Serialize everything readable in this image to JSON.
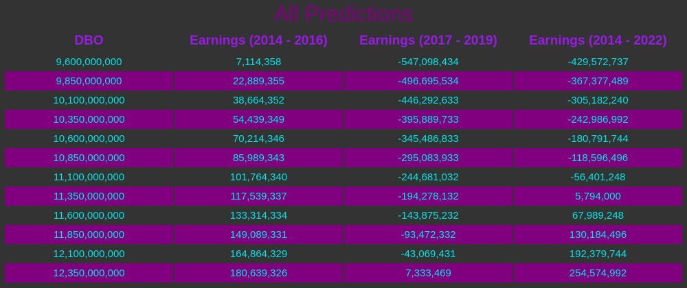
{
  "title": "All Predictions",
  "colors": {
    "background": "#333333",
    "title": "#800080",
    "header_text": "#9a1ae6",
    "cell_text": "#00e5e5",
    "alt_row": "#800080"
  },
  "table": {
    "columns": [
      "DBO",
      "Earnings (2014 - 2016)",
      "Earnings (2017 - 2019)",
      "Earnings (2014 - 2022)"
    ],
    "rows": [
      [
        "9,600,000,000",
        "7,114,358",
        "-547,098,434",
        "-429,572,737"
      ],
      [
        "9,850,000,000",
        "22,889,355",
        "-496,695,534",
        "-367,377,489"
      ],
      [
        "10,100,000,000",
        "38,664,352",
        "-446,292,633",
        "-305,182,240"
      ],
      [
        "10,350,000,000",
        "54,439,349",
        "-395,889,733",
        "-242,986,992"
      ],
      [
        "10,600,000,000",
        "70,214,346",
        "-345,486,833",
        "-180,791,744"
      ],
      [
        "10,850,000,000",
        "85,989,343",
        "-295,083,933",
        "-118,596,496"
      ],
      [
        "11,100,000,000",
        "101,764,340",
        "-244,681,032",
        "-56,401,248"
      ],
      [
        "11,350,000,000",
        "117,539,337",
        "-194,278,132",
        "5,794,000"
      ],
      [
        "11,600,000,000",
        "133,314,334",
        "-143,875,232",
        "67,989,248"
      ],
      [
        "11,850,000,000",
        "149,089,331",
        "-93,472,332",
        "130,184,496"
      ],
      [
        "12,100,000,000",
        "164,864,329",
        "-43,069,431",
        "192,379,744"
      ],
      [
        "12,350,000,000",
        "180,639,326",
        "7,333,469",
        "254,574,992"
      ]
    ]
  }
}
